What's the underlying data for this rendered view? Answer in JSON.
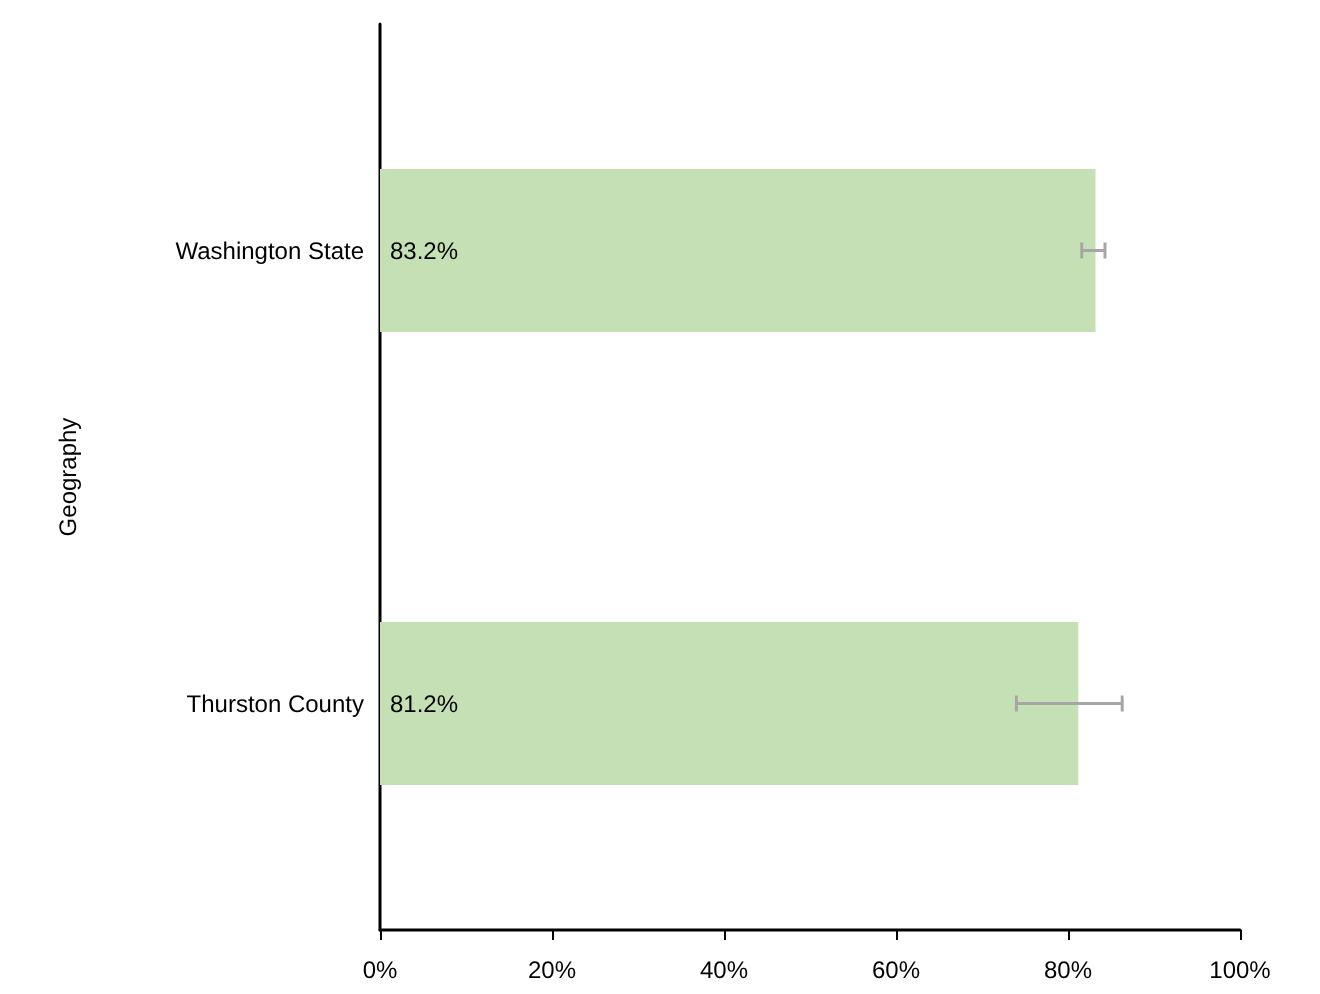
{
  "chart_data": {
    "type": "bar",
    "orientation": "horizontal",
    "ylabel": "Geography",
    "categories": [
      "Washington State",
      "Thurston County"
    ],
    "values": [
      83.2,
      81.2
    ],
    "color": "#c5e0b4",
    "errors": [
      [
        81.6,
        84.3
      ],
      [
        74.0,
        86.3
      ]
    ],
    "value_labels": [
      "83.2%",
      "81.2%"
    ],
    "xlim": [
      0,
      100
    ],
    "xticks": [
      {
        "value": 0,
        "label": "0%"
      },
      {
        "value": 20,
        "label": "20%"
      },
      {
        "value": 40,
        "label": "40%"
      },
      {
        "value": 60,
        "label": "60%"
      },
      {
        "value": 80,
        "label": "80%"
      },
      {
        "value": 100,
        "label": "100%"
      }
    ],
    "grid": false
  }
}
